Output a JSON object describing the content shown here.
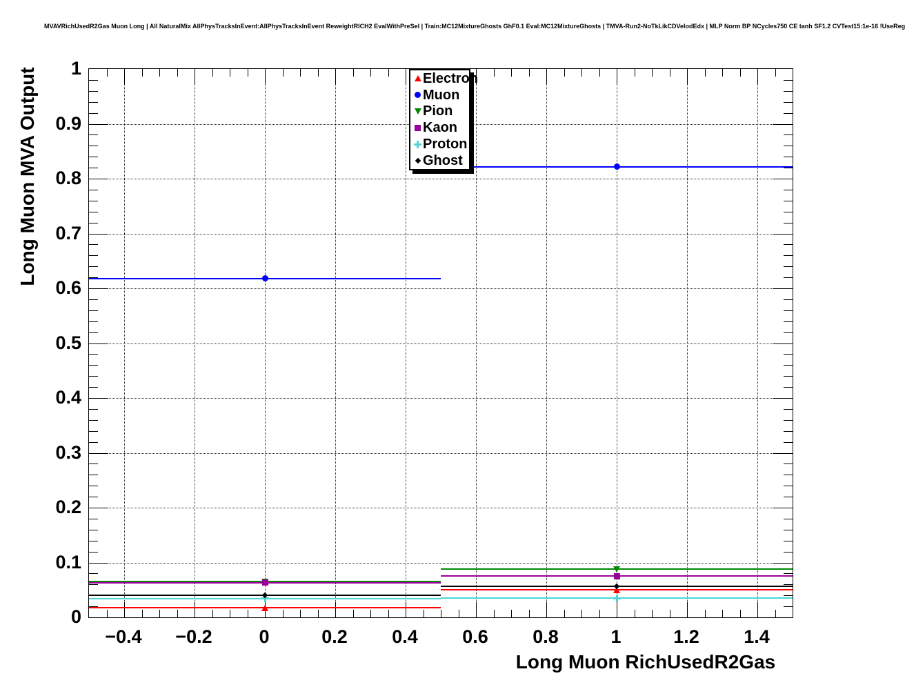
{
  "chart_data": {
    "type": "line",
    "subtype": "root-profile-histogram",
    "title": "MVAVRichUsedR2Gas Muon Long | All NaturalMix AllPhysTracksInEvent:AllPhysTracksInEvent ReweightRICH2 EvalWithPreSel | Train:MC12MixtureGhosts GhF0.1 Eval:MC12MixtureGhosts | TMVA-Run2-NoTkLikCDVelodEdx | MLP Norm BP NCycles750 CE tanh SF1.2 CVTest15:1e-16 !UseReg",
    "xlabel": "Long Muon RichUsedR2Gas",
    "ylabel": "Long Muon MVA Output",
    "xlim": [
      -0.5,
      1.5
    ],
    "ylim": [
      0,
      1
    ],
    "grid": "dotted-at-major-ticks",
    "bin_edges": [
      -0.5,
      0.5,
      1.5
    ],
    "bin_centers": [
      0,
      1
    ],
    "x_tick_values": [
      -0.4,
      -0.2,
      0,
      0.2,
      0.4,
      0.6,
      0.8,
      1.0,
      1.2,
      1.4
    ],
    "x_tick_labels": [
      "−0.4",
      "−0.2",
      "0",
      "0.2",
      "0.4",
      "0.6",
      "0.8",
      "1",
      "1.2",
      "1.4"
    ],
    "x_minor_tick_step": 0.05,
    "y_tick_values": [
      0,
      0.1,
      0.2,
      0.3,
      0.4,
      0.5,
      0.6,
      0.7,
      0.8,
      0.9,
      1.0
    ],
    "y_tick_labels": [
      "0",
      "0.1",
      "0.2",
      "0.3",
      "0.4",
      "0.5",
      "0.6",
      "0.7",
      "0.8",
      "0.9",
      "1"
    ],
    "y_minor_tick_step": 0.02,
    "legend_position": "top-center",
    "series": [
      {
        "name": "Electron",
        "color": "#ff0000",
        "marker": "triangle-up",
        "values": [
          0.017,
          0.05
        ]
      },
      {
        "name": "Muon",
        "color": "#0000ff",
        "marker": "circle",
        "values": [
          0.618,
          0.822
        ]
      },
      {
        "name": "Pion",
        "color": "#008800",
        "marker": "triangle-down",
        "values": [
          0.065,
          0.088
        ]
      },
      {
        "name": "Kaon",
        "color": "#990099",
        "marker": "square",
        "values": [
          0.063,
          0.075
        ]
      },
      {
        "name": "Proton",
        "color": "#4fd4d4",
        "marker": "plus",
        "values": [
          0.034,
          0.035
        ]
      },
      {
        "name": "Ghost",
        "color": "#000000",
        "marker": "diamond",
        "values": [
          0.04,
          0.057
        ]
      }
    ]
  }
}
